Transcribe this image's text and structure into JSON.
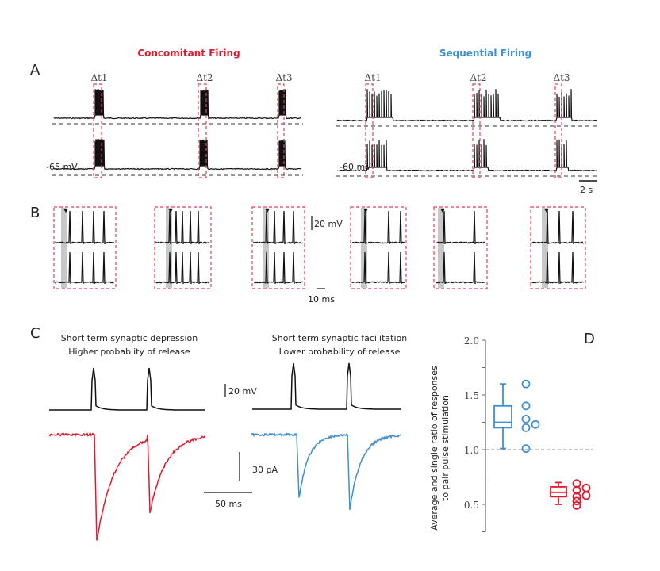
{
  "panel_labels": {
    "a": "A",
    "b": "B",
    "c": "C",
    "d": "D"
  },
  "panel_a": {
    "left_title": "Concomitant Firing",
    "right_title": "Sequential Firing",
    "left_dt": [
      "Δt1",
      "Δt2",
      "Δt3"
    ],
    "right_dt": [
      "Δt1",
      "Δt2",
      "Δt3"
    ],
    "left_vm": "-65 mV",
    "right_vm": "-60 mV",
    "time_scale": "2 s"
  },
  "panel_b": {
    "voltage_scale": "20 mV",
    "time_scale": "10 ms"
  },
  "panel_c": {
    "left_title_1": "Short term synaptic depression",
    "left_title_2": "Higher probablity of release",
    "right_title_1": "Short term synaptic facilitation",
    "right_title_2": "Lower probability of release",
    "voltage_scale": "20 mV",
    "current_scale": "30 pA",
    "time_scale": "50 ms"
  },
  "colors": {
    "concomitant": "#e0192f",
    "sequential": "#3f8fd2",
    "trace": "#111111",
    "box_dash": "#e0405a"
  },
  "chart_data": {
    "type": "box",
    "ylabel": "Average and single ratio of responses to pair pulse stimulation",
    "ylim": [
      0.25,
      2.0
    ],
    "yticks": [
      0.5,
      1.0,
      1.5,
      2.0
    ],
    "ytick_labels": [
      "0.5",
      "1.0",
      "1.5",
      "2.0"
    ],
    "reference_line": 1.0,
    "series": [
      {
        "name": "Sequential",
        "color": "#3f8fd2",
        "whisker_low": 1.01,
        "q1": 1.2,
        "median": 1.25,
        "q3": 1.4,
        "whisker_high": 1.6,
        "points": [
          1.6,
          1.4,
          1.28,
          1.2,
          1.01
        ],
        "points_offset": [
          1.23
        ]
      },
      {
        "name": "Concomitant",
        "color": "#e0192f",
        "whisker_low": 0.5,
        "q1": 0.57,
        "median": 0.61,
        "q3": 0.66,
        "whisker_high": 0.7,
        "points": [
          0.69,
          0.63,
          0.57,
          0.53,
          0.49
        ],
        "points_offset": [
          0.65,
          0.58
        ]
      }
    ]
  }
}
